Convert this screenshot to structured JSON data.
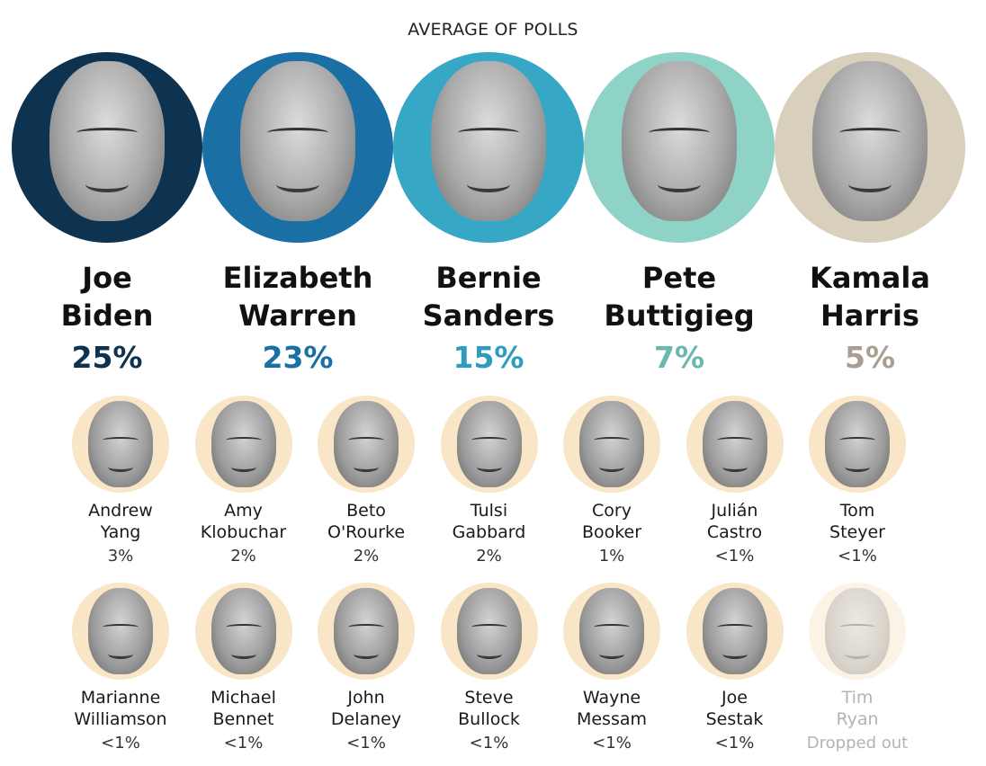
{
  "title": "AVERAGE OF POLLS",
  "leaders": [
    {
      "first": "Joe",
      "last": "Biden",
      "pct": "25%",
      "color": "#0d3350",
      "bg": "#0d3350"
    },
    {
      "first": "Elizabeth",
      "last": "Warren",
      "pct": "23%",
      "color": "#1a6fa5",
      "bg": "#1a6fa5"
    },
    {
      "first": "Bernie",
      "last": "Sanders",
      "pct": "15%",
      "color": "#2e9cbf",
      "bg": "#37a7c6"
    },
    {
      "first": "Pete",
      "last": "Buttigieg",
      "pct": "7%",
      "color": "#6ab7ad",
      "bg": "#8fd2c6"
    },
    {
      "first": "Kamala",
      "last": "Harris",
      "pct": "5%",
      "color": "#a99f91",
      "bg": "#d9cfbd"
    }
  ],
  "others": [
    {
      "first": "Andrew",
      "last": "Yang",
      "pct": "3%"
    },
    {
      "first": "Amy",
      "last": "Klobuchar",
      "pct": "2%"
    },
    {
      "first": "Beto",
      "last": "O'Rourke",
      "pct": "2%"
    },
    {
      "first": "Tulsi",
      "last": "Gabbard",
      "pct": "2%"
    },
    {
      "first": "Cory",
      "last": "Booker",
      "pct": "1%"
    },
    {
      "first": "Julián",
      "last": "Castro",
      "pct": "<1%"
    },
    {
      "first": "Tom",
      "last": "Steyer",
      "pct": "<1%"
    },
    {
      "first": "Marianne",
      "last": "Williamson",
      "pct": "<1%"
    },
    {
      "first": "Michael",
      "last": "Bennet",
      "pct": "<1%"
    },
    {
      "first": "John",
      "last": "Delaney",
      "pct": "<1%"
    },
    {
      "first": "Steve",
      "last": "Bullock",
      "pct": "<1%"
    },
    {
      "first": "Wayne",
      "last": "Messam",
      "pct": "<1%"
    },
    {
      "first": "Joe",
      "last": "Sestak",
      "pct": "<1%"
    },
    {
      "first": "Tim",
      "last": "Ryan",
      "pct": "Dropped out",
      "dropped": true
    }
  ]
}
